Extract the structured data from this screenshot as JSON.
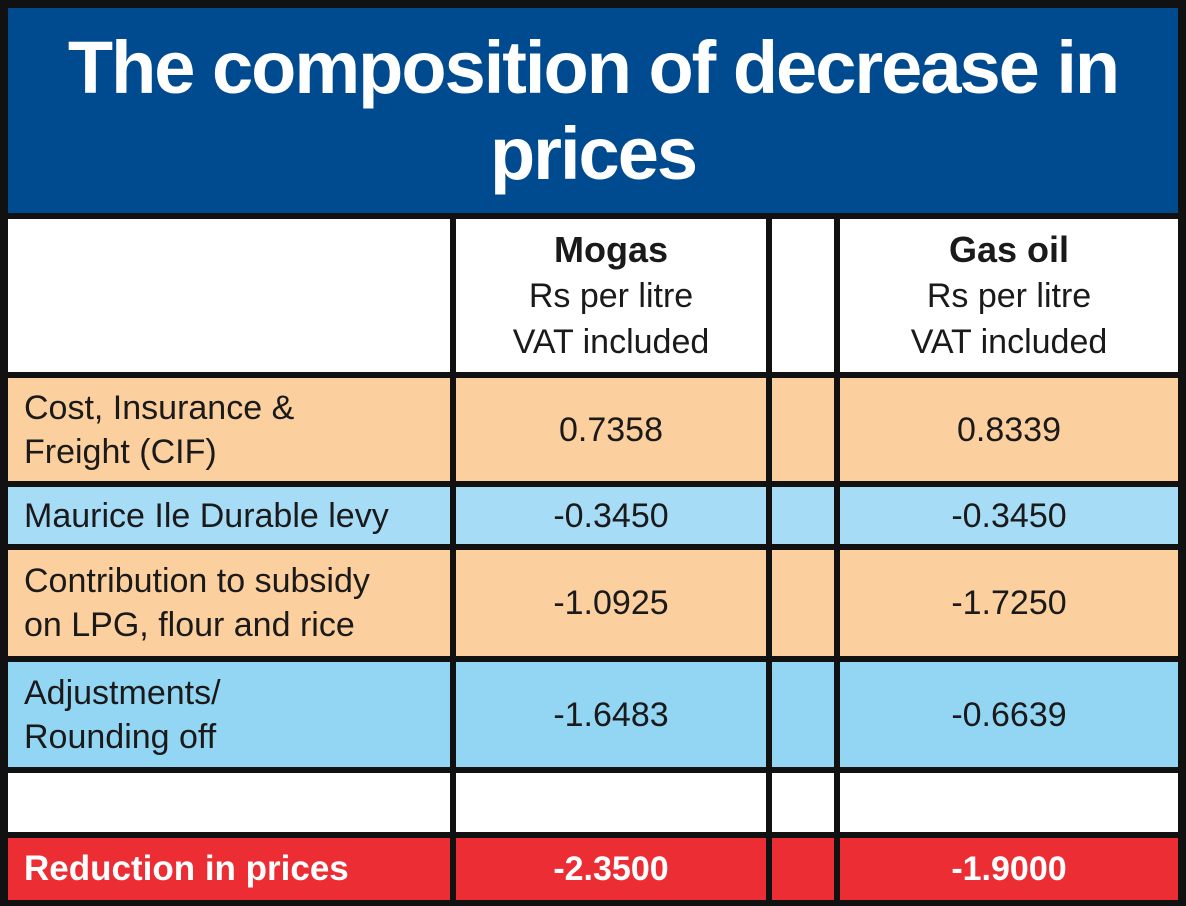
{
  "title": "The composition of decrease in prices",
  "columns": [
    {
      "name": "Mogas",
      "unit_line1": "Rs per litre",
      "unit_line2": "VAT included"
    },
    {
      "name": "Gas oil",
      "unit_line1": "Rs per litre",
      "unit_line2": "VAT included"
    }
  ],
  "rows": [
    {
      "label_line1": "Cost, Insurance &",
      "label_line2": "Freight (CIF)",
      "mogas": "0.7358",
      "gasoil": "0.8339"
    },
    {
      "label_line1": "Maurice Ile Durable levy",
      "label_line2": "",
      "mogas": "-0.3450",
      "gasoil": "-0.3450"
    },
    {
      "label_line1": "Contribution to subsidy",
      "label_line2": "on LPG, flour and rice",
      "mogas": "-1.0925",
      "gasoil": "-1.7250"
    },
    {
      "label_line1": "Adjustments/",
      "label_line2": "Rounding off",
      "mogas": "-1.6483",
      "gasoil": "-0.6639"
    }
  ],
  "total": {
    "label": "Reduction in prices",
    "mogas": "-2.3500",
    "gasoil": "-1.9000"
  },
  "colors": {
    "title_bg": "#004a8f",
    "row_orange": "#fccf9e",
    "row_blue": "#a6dcf6",
    "total_red": "#ed2d34",
    "grid": "#111111"
  },
  "chart_data": {
    "type": "table",
    "title": "The composition of decrease in prices",
    "columns": [
      "",
      "Mogas Rs per litre VAT included",
      "Gas oil Rs per litre VAT included"
    ],
    "rows": [
      [
        "Cost, Insurance & Freight (CIF)",
        0.7358,
        0.8339
      ],
      [
        "Maurice Ile Durable levy",
        -0.345,
        -0.345
      ],
      [
        "Contribution to subsidy on LPG, flour and rice",
        -1.0925,
        -1.725
      ],
      [
        "Adjustments/ Rounding off",
        -1.6483,
        -0.6639
      ],
      [
        "Reduction in prices",
        -2.35,
        -1.9
      ]
    ]
  }
}
